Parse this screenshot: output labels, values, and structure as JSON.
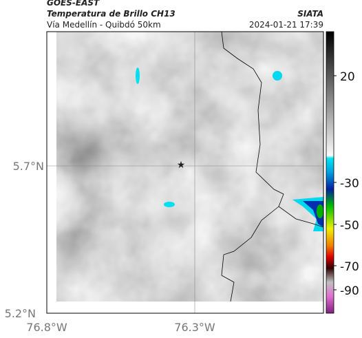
{
  "header": {
    "source": "GOES-EAST",
    "title": "Temperatura de Brillo CH13",
    "org": "SIATA",
    "region": "Vía Medellín - Quibdó 50km",
    "timestamp": "2024-01-21 17:39"
  },
  "map": {
    "lat_ticks": [
      "5.7°N",
      "5.2°N"
    ],
    "lon_ticks": [
      "76.8°W",
      "76.3°W"
    ]
  },
  "colorbar": {
    "ticks": [
      "20",
      "-30",
      "-50",
      "-70",
      "-90"
    ]
  }
}
